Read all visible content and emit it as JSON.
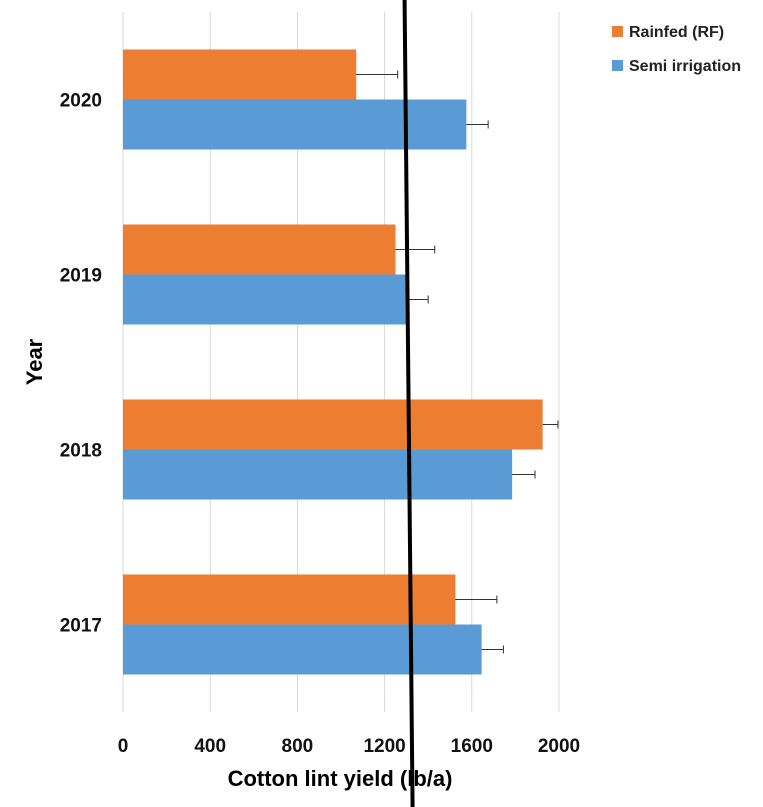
{
  "chart_data": {
    "type": "bar",
    "orientation": "horizontal",
    "categories": [
      "2017",
      "2018",
      "2019",
      "2020"
    ],
    "series": [
      {
        "name": "Rainfed (RF)",
        "color": "#ED7D31",
        "values": [
          1525,
          1925,
          1250,
          1070
        ],
        "errors": [
          190,
          70,
          180,
          190
        ]
      },
      {
        "name": "Semi irrigation",
        "color": "#5B9BD5",
        "values": [
          1645,
          1785,
          1300,
          1575
        ],
        "errors": [
          100,
          105,
          100,
          100
        ]
      }
    ],
    "xlim": [
      0,
      2000
    ],
    "xticks": [
      "0",
      "400",
      "800",
      "1200",
      "1600",
      "2000"
    ],
    "xlabel": "Cotton lint yield (lb/a)",
    "ylabel": "Year",
    "reference_line_x": 1310,
    "grid": "vertical",
    "legend_position": "top-right"
  }
}
